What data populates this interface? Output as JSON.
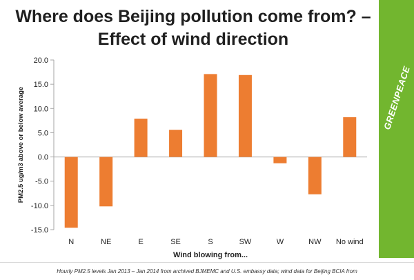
{
  "chart_data": {
    "type": "bar",
    "title": "Where does Beijing pollution come from? – Effect of wind direction",
    "xlabel": "Wind blowing from...",
    "ylabel": "PM2.5 ug/m3 above or below average",
    "categories": [
      "N",
      "NE",
      "E",
      "SE",
      "S",
      "SW",
      "W",
      "NW",
      "No wind"
    ],
    "values": [
      -14.6,
      -10.2,
      7.9,
      5.6,
      17.1,
      16.9,
      -1.3,
      -7.7,
      8.2
    ],
    "ylim": [
      -15,
      20
    ],
    "yticks": [
      "20.0",
      "15.0",
      "10.0",
      "5.0",
      "0.0",
      "-5.0",
      "-10.0",
      "-15.0"
    ],
    "grid": false,
    "bar_color": "#ed7d31"
  },
  "brand": {
    "logo_text": "GREENPEACE",
    "color": "#72b62f"
  },
  "footnote": "Hourly PM2.5 levels Jan 2013 – Jan 2014 from archived BJMEMC and U.S. embassy data; wind data for Beijing BCIA from"
}
